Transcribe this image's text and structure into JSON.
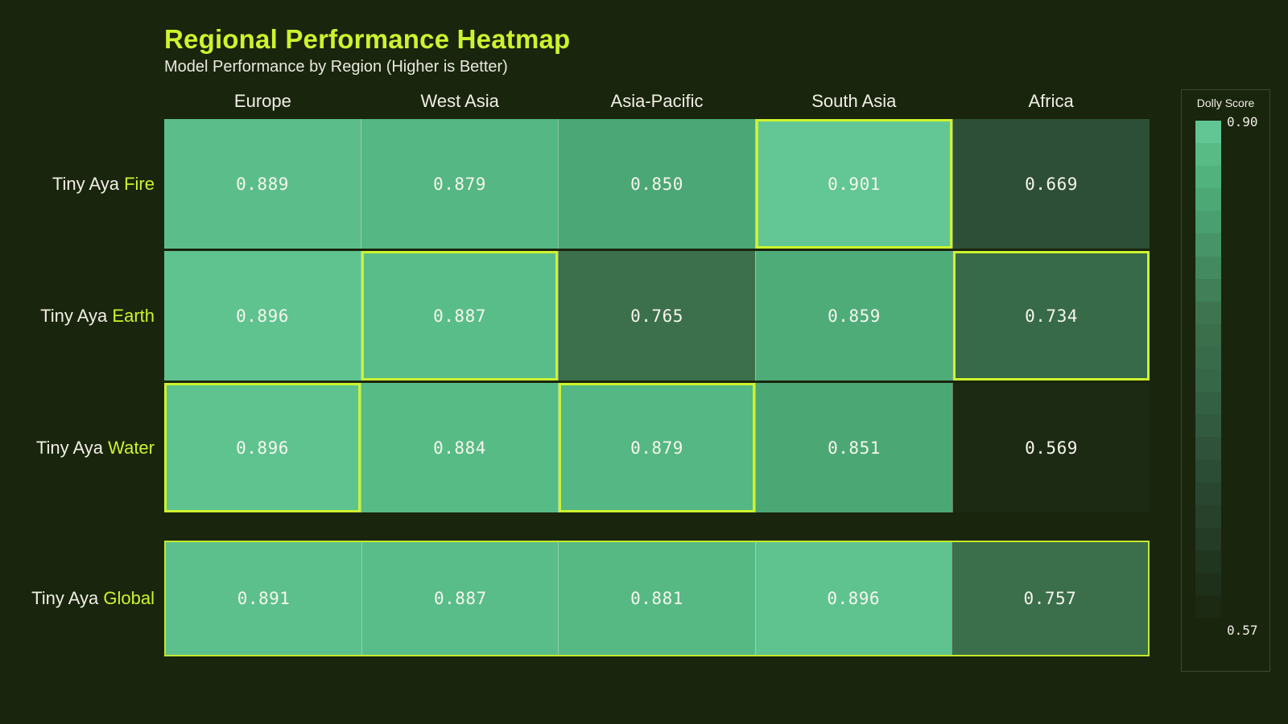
{
  "chart_data": {
    "type": "heatmap",
    "title": "Regional Performance Heatmap",
    "subtitle": "Model Performance by Region (Higher is Better)",
    "columns": [
      "Europe",
      "West Asia",
      "Asia-Pacific",
      "South Asia",
      "Africa"
    ],
    "rows": [
      {
        "label_prefix": "Tiny Aya",
        "label_accent": "Fire",
        "values": [
          0.889,
          0.879,
          0.85,
          0.901,
          0.669
        ],
        "best_cells": [
          3
        ]
      },
      {
        "label_prefix": "Tiny Aya",
        "label_accent": "Earth",
        "values": [
          0.896,
          0.887,
          0.765,
          0.859,
          0.734
        ],
        "best_cells": [
          1,
          4
        ]
      },
      {
        "label_prefix": "Tiny Aya",
        "label_accent": "Water",
        "values": [
          0.896,
          0.884,
          0.879,
          0.851,
          0.569
        ],
        "best_cells": [
          0,
          2
        ]
      }
    ],
    "global_row": {
      "label_prefix": "Tiny Aya",
      "label_accent": "Global",
      "values": [
        0.891,
        0.887,
        0.881,
        0.896,
        0.757
      ],
      "row_highlighted": true
    },
    "colorbar": {
      "title": "Dolly Score",
      "max_label": "0.90",
      "min_label": "0.57",
      "vmin": 0.57,
      "vmax": 0.9,
      "steps": 22
    },
    "value_decimals": 3,
    "legend_position": "right",
    "grid": false,
    "colors": {
      "background": "#1a250d",
      "accent": "#cdf32e",
      "text_light": "#f0efe6",
      "scale": [
        [
          0.57,
          "#1c2a14"
        ],
        [
          0.669,
          "#2d4f37"
        ],
        [
          0.735,
          "#376a49"
        ],
        [
          0.765,
          "#3c6f4c"
        ],
        [
          0.85,
          "#4ba775"
        ],
        [
          0.88,
          "#55b883"
        ],
        [
          0.901,
          "#62c794"
        ]
      ]
    }
  }
}
